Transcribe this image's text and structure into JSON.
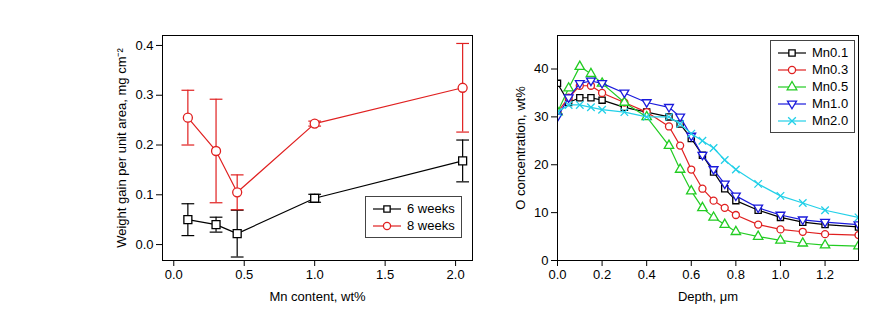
{
  "chart_data": [
    {
      "type": "line",
      "x_label": "Mn content, wt%",
      "y_label": "Weight gain per unit area, mg cm⁻²",
      "x": [
        0.1,
        0.3,
        0.45,
        1.0,
        2.05
      ],
      "xlim": [
        -0.08,
        2.12
      ],
      "xticks": [
        {
          "value": 0,
          "label": "0.0"
        },
        {
          "value": 0.5,
          "label": "0.5"
        },
        {
          "value": 1,
          "label": "1.0"
        },
        {
          "value": 1.5,
          "label": "1.5"
        },
        {
          "value": 2,
          "label": "2.0"
        }
      ],
      "ylim": [
        -0.032,
        0.42
      ],
      "yticks": [
        {
          "value": 0,
          "label": "0.0"
        },
        {
          "value": 0.1,
          "label": "0.1"
        },
        {
          "value": 0.2,
          "label": "0.2"
        },
        {
          "value": 0.3,
          "label": "0.3"
        },
        {
          "value": 0.4,
          "label": "0.4"
        }
      ],
      "legend": "lower right",
      "series": [
        {
          "name": "6 weeks",
          "color": "#000000",
          "marker": "square",
          "line_style": "solid",
          "values": [
            0.05,
            0.04,
            0.022,
            0.093,
            0.168
          ],
          "errors": [
            0.032,
            0.015,
            0.047,
            0.008,
            0.042
          ]
        },
        {
          "name": "8 weeks",
          "color": "#e02020",
          "marker": "circle",
          "line_style": "solid",
          "values": [
            0.255,
            0.188,
            0.105,
            0.243,
            0.315
          ],
          "errors": [
            0.055,
            0.104,
            0.035,
            0.005,
            0.089
          ]
        }
      ]
    },
    {
      "type": "line",
      "x_label": "Depth, μm",
      "y_label": "O concentration, wt%",
      "x": [
        0,
        0.05,
        0.1,
        0.15,
        0.2,
        0.3,
        0.4,
        0.5,
        0.55,
        0.6,
        0.65,
        0.7,
        0.75,
        0.8,
        0.9,
        1.0,
        1.1,
        1.2,
        1.35
      ],
      "xlim": [
        0,
        1.35
      ],
      "xticks": [
        {
          "value": 0,
          "label": "0.0"
        },
        {
          "value": 0.2,
          "label": "0.2"
        },
        {
          "value": 0.4,
          "label": "0.4"
        },
        {
          "value": 0.6,
          "label": "0.6"
        },
        {
          "value": 0.8,
          "label": "0.8"
        },
        {
          "value": 1,
          "label": "1.0"
        },
        {
          "value": 1.2,
          "label": "1.2"
        }
      ],
      "ylim": [
        0,
        47
      ],
      "yticks": [
        0,
        10,
        20,
        30,
        40
      ],
      "legend": "upper right",
      "series": [
        {
          "name": "Mn0.1",
          "color": "#000000",
          "marker": "square",
          "line_style": "solid",
          "values": [
            37,
            33,
            34,
            34,
            33.5,
            32,
            31,
            30,
            28.5,
            25.5,
            22,
            18.5,
            15,
            12.5,
            10.5,
            9,
            8,
            7.5,
            7
          ]
        },
        {
          "name": "Mn0.3",
          "color": "#e02020",
          "marker": "circle",
          "line_style": "solid",
          "values": [
            31,
            34,
            36.5,
            36.5,
            35,
            33,
            31,
            28,
            24,
            19,
            15,
            12.5,
            11,
            9.5,
            7.5,
            6.5,
            6,
            5.5,
            5.3
          ]
        },
        {
          "name": "Mn0.5",
          "color": "#22cc22",
          "marker": "triangle",
          "line_style": "solid",
          "values": [
            31,
            36,
            40.5,
            39,
            37,
            33,
            30,
            24,
            19,
            14.5,
            11,
            9,
            7.5,
            6,
            5,
            4.2,
            3.6,
            3.2,
            3
          ]
        },
        {
          "name": "Mn1.0",
          "color": "#1a1adc",
          "marker": "triangle-down",
          "line_style": "solid",
          "values": [
            30,
            34,
            37,
            37.5,
            37,
            35,
            33,
            32,
            30,
            26,
            22,
            19,
            16,
            13.5,
            11,
            9.5,
            8.5,
            8,
            7.5
          ]
        },
        {
          "name": "Mn2.0",
          "color": "#22d0e8",
          "marker": "x",
          "line_style": "solid",
          "values": [
            31,
            32.5,
            32.5,
            32,
            31.5,
            31,
            30,
            30,
            28.5,
            26.5,
            25,
            23.5,
            21,
            19,
            16,
            13.5,
            12,
            10.5,
            9
          ]
        }
      ]
    }
  ]
}
